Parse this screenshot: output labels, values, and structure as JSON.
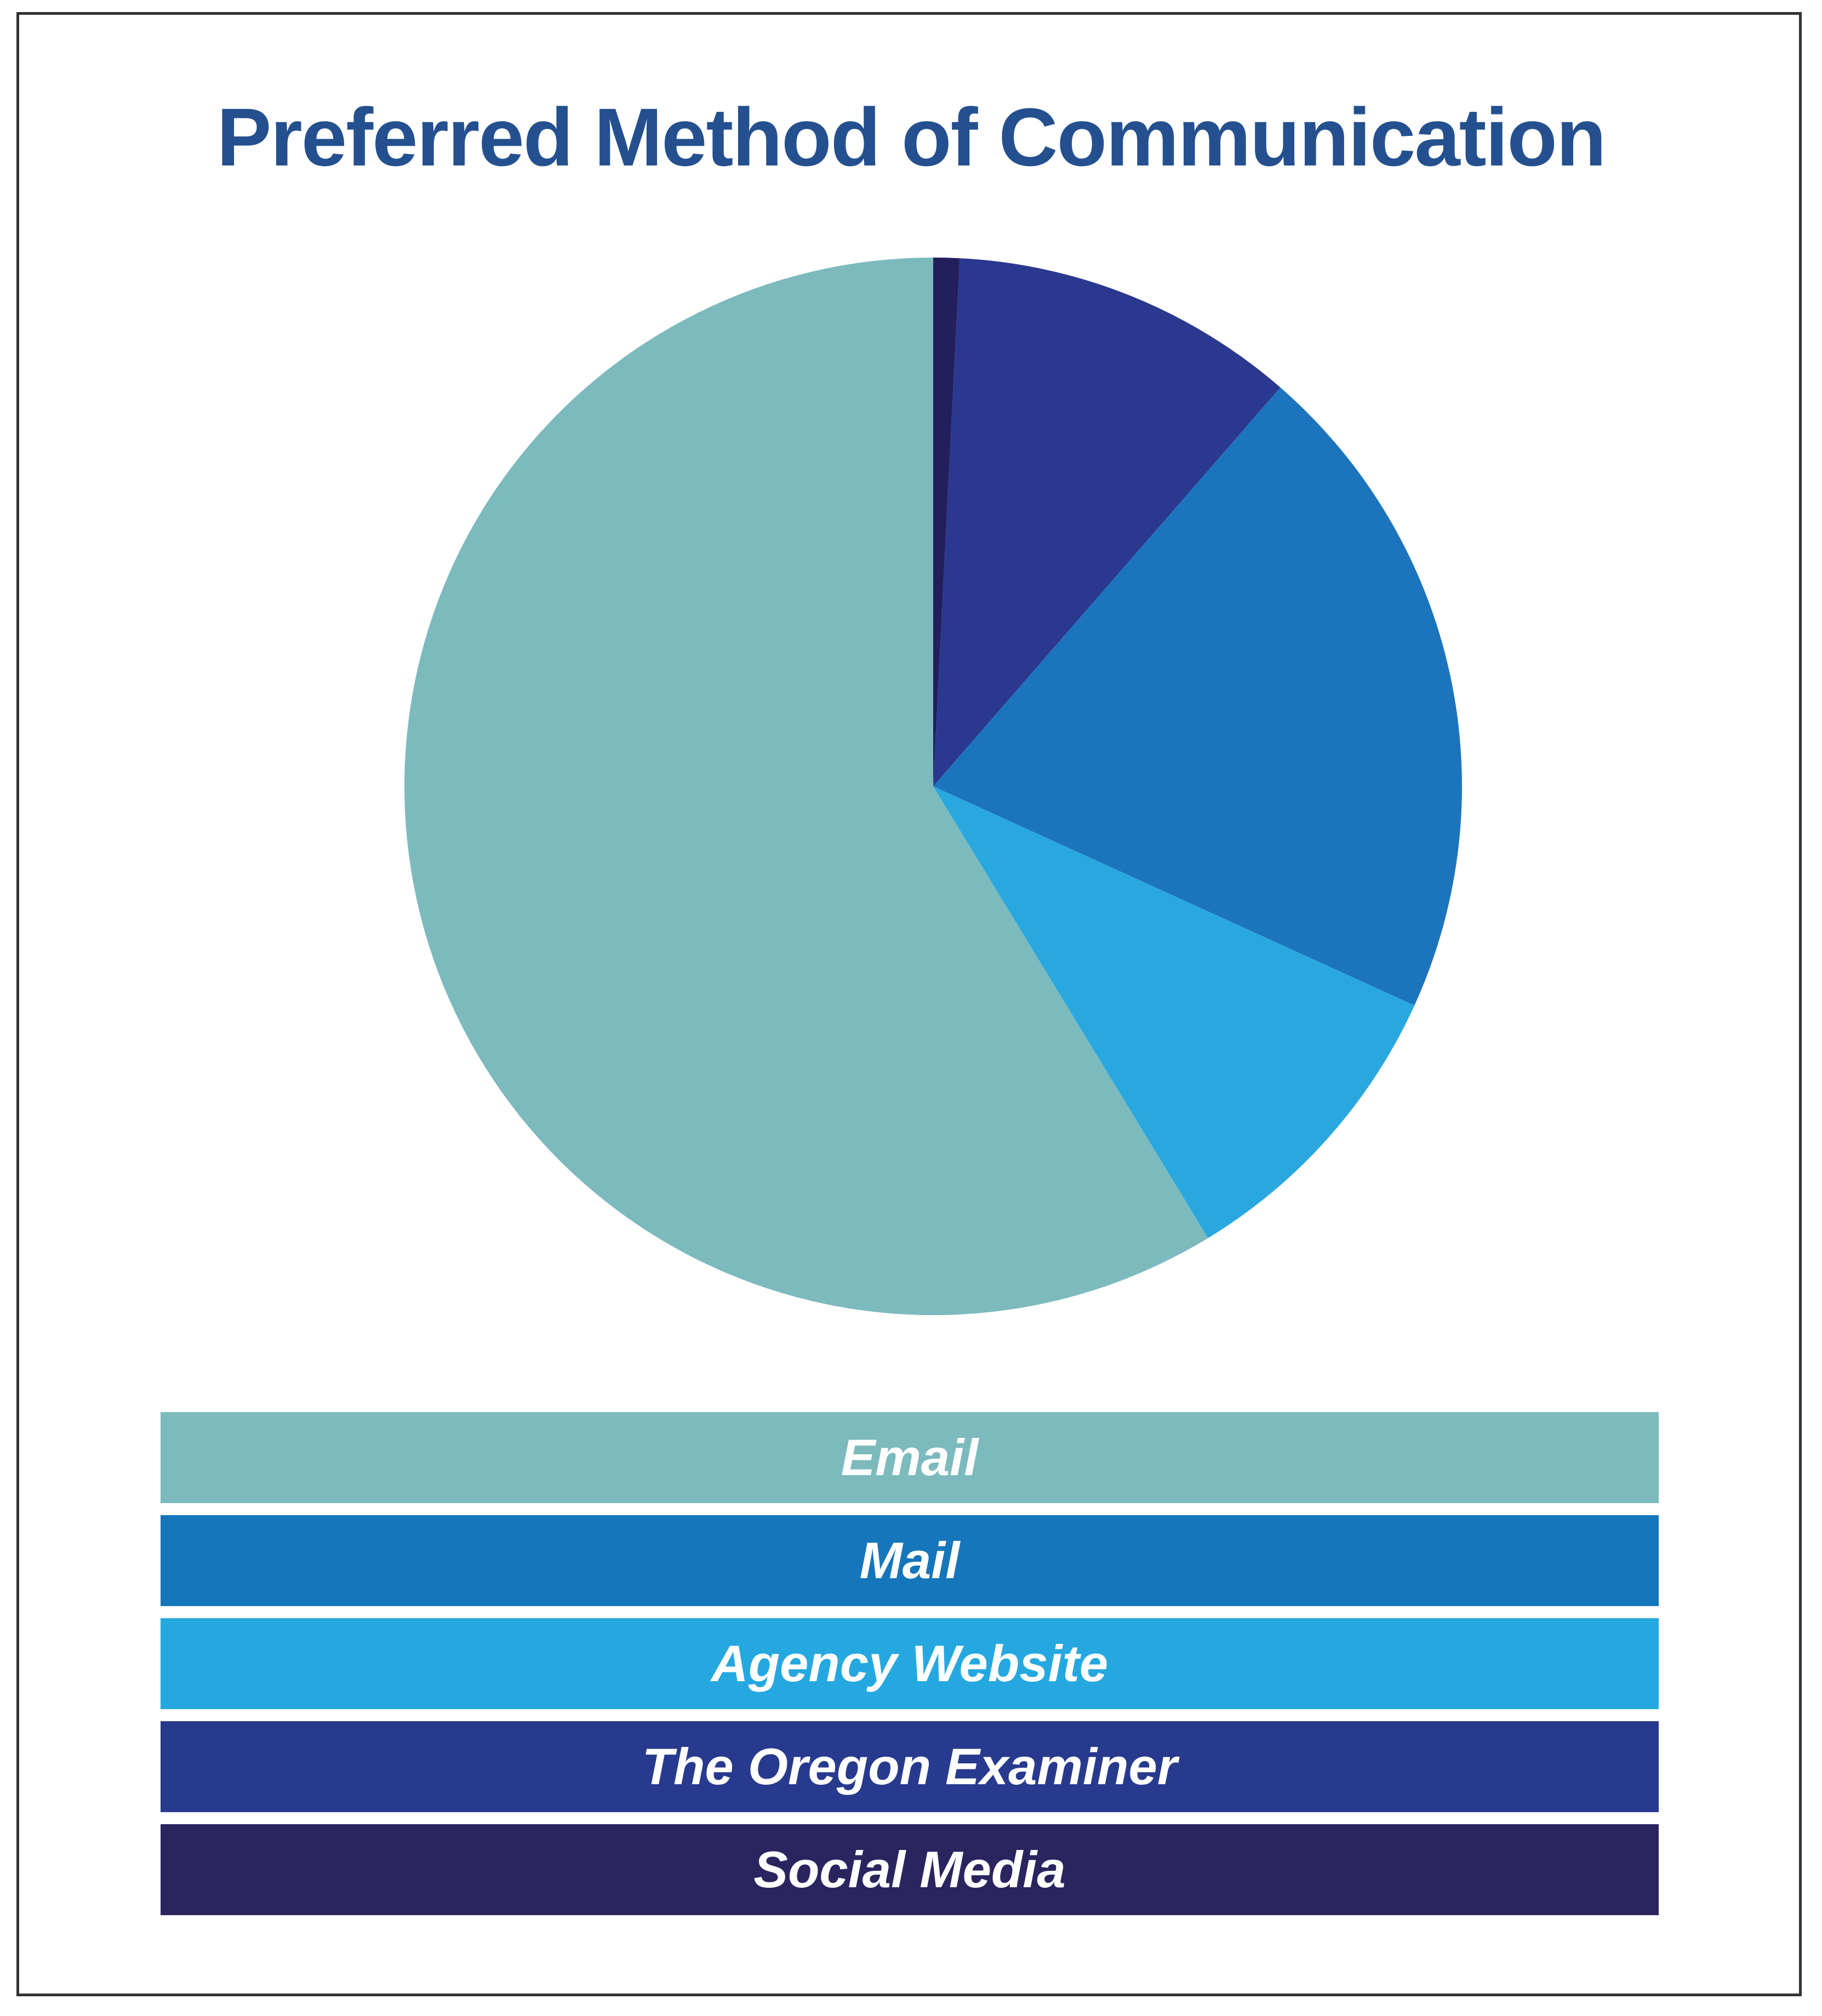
{
  "chart_data": {
    "type": "pie",
    "title": "Preferred Method of Communication",
    "slices": [
      {
        "label": "Social Media",
        "value": 0.8,
        "color": "#231f5c"
      },
      {
        "label": "The Oregon Examiner",
        "value": 10.6,
        "color": "#2a388f"
      },
      {
        "label": "Mail",
        "value": 20.4,
        "color": "#1c75bc"
      },
      {
        "label": "Agency Website",
        "value": 9.5,
        "color": "#29a8e0"
      },
      {
        "label": "Email",
        "value": 58.7,
        "color": "#7cbabd"
      }
    ],
    "start_angle_deg": 0,
    "direction": "clockwise",
    "legend": [
      {
        "label": "Email",
        "color": "#7cbabd"
      },
      {
        "label": "Mail",
        "color": "#1576bb"
      },
      {
        "label": "Agency Website",
        "color": "#25a8e0"
      },
      {
        "label": "The Oregon Examiner",
        "color": "#283a8e"
      },
      {
        "label": "Social Media",
        "color": "#2a255f"
      }
    ],
    "legend_placement": "bottom"
  }
}
